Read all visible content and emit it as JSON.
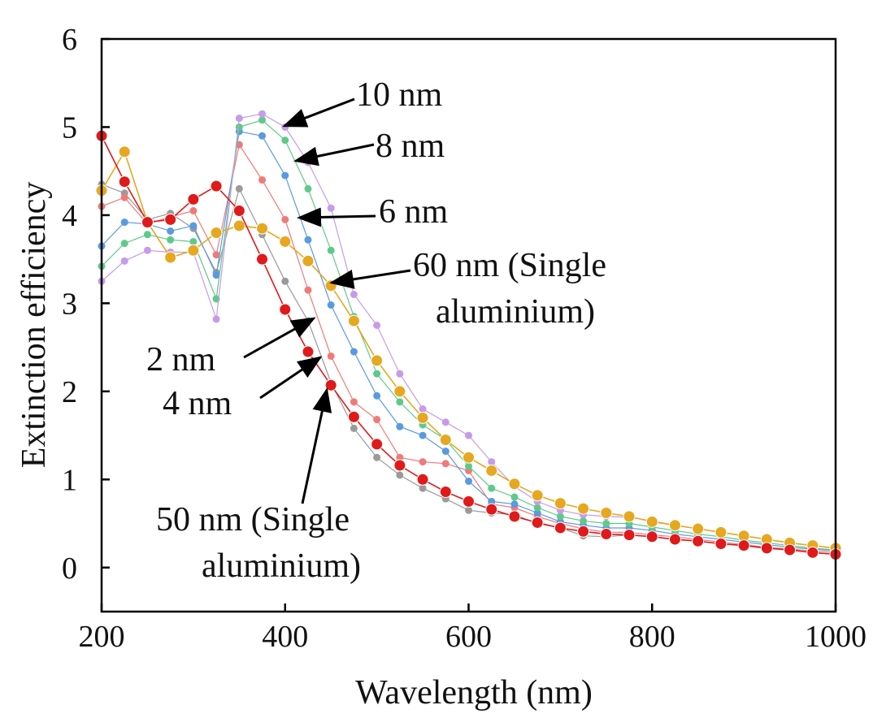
{
  "chart_data": {
    "type": "line",
    "title": "",
    "xlabel": "Wavelength (nm)",
    "ylabel": "Extinction efficiency",
    "xlim": [
      200,
      1000
    ],
    "ylim": [
      -0.5,
      6
    ],
    "xticks": [
      200,
      400,
      600,
      800,
      1000
    ],
    "yticks": [
      0,
      1,
      2,
      3,
      4,
      5,
      6
    ],
    "x": [
      200,
      225,
      250,
      275,
      300,
      325,
      350,
      375,
      400,
      425,
      450,
      475,
      500,
      525,
      550,
      575,
      600,
      625,
      650,
      675,
      700,
      725,
      750,
      775,
      800,
      825,
      850,
      875,
      900,
      925,
      950,
      975,
      1000
    ],
    "series": [
      {
        "name": "2 nm",
        "color": "#9a9a9a",
        "values": [
          4.35,
          4.25,
          3.95,
          4.02,
          3.85,
          3.35,
          4.3,
          3.78,
          3.25,
          2.8,
          2.1,
          1.58,
          1.25,
          1.05,
          0.9,
          0.78,
          0.65,
          0.62,
          0.6,
          0.5,
          0.45,
          0.36,
          0.35,
          0.37,
          0.35,
          0.32,
          0.3,
          0.27,
          0.25,
          0.22,
          0.2,
          0.17,
          0.15
        ]
      },
      {
        "name": "4 nm",
        "color": "#f07a7a",
        "values": [
          4.1,
          4.2,
          3.9,
          3.98,
          4.05,
          3.55,
          4.8,
          4.4,
          3.95,
          3.15,
          2.4,
          1.88,
          1.68,
          1.25,
          1.2,
          1.18,
          1.1,
          0.72,
          0.68,
          0.58,
          0.5,
          0.44,
          0.4,
          0.4,
          0.37,
          0.35,
          0.32,
          0.29,
          0.26,
          0.23,
          0.21,
          0.19,
          0.17
        ]
      },
      {
        "name": "6 nm",
        "color": "#5a9ae0",
        "values": [
          3.65,
          3.92,
          3.9,
          3.82,
          3.88,
          3.32,
          4.95,
          4.9,
          4.45,
          3.72,
          2.98,
          2.45,
          1.95,
          1.6,
          1.5,
          1.32,
          0.98,
          0.75,
          0.72,
          0.62,
          0.52,
          0.48,
          0.45,
          0.45,
          0.42,
          0.38,
          0.35,
          0.32,
          0.29,
          0.26,
          0.23,
          0.21,
          0.19
        ]
      },
      {
        "name": "8 nm",
        "color": "#5fc98a",
        "values": [
          3.42,
          3.68,
          3.78,
          3.72,
          3.7,
          3.05,
          5.0,
          5.08,
          4.85,
          4.3,
          3.6,
          2.85,
          2.2,
          1.88,
          1.62,
          1.45,
          1.15,
          0.9,
          0.8,
          0.68,
          0.58,
          0.53,
          0.5,
          0.5,
          0.46,
          0.42,
          0.38,
          0.35,
          0.31,
          0.28,
          0.25,
          0.22,
          0.2
        ]
      },
      {
        "name": "10 nm",
        "color": "#c79be8",
        "values": [
          3.25,
          3.48,
          3.6,
          3.58,
          3.58,
          2.82,
          5.1,
          5.15,
          5.0,
          4.6,
          4.08,
          3.1,
          2.75,
          2.2,
          1.8,
          1.65,
          1.5,
          1.2,
          0.92,
          0.75,
          0.65,
          0.6,
          0.58,
          0.57,
          0.53,
          0.48,
          0.44,
          0.4,
          0.36,
          0.32,
          0.28,
          0.25,
          0.22
        ]
      },
      {
        "name": "60 nm (Single aluminium)",
        "color": "#e5a820",
        "values": [
          4.28,
          4.72,
          3.92,
          3.52,
          3.6,
          3.8,
          3.88,
          3.85,
          3.7,
          3.48,
          3.2,
          2.8,
          2.35,
          2.0,
          1.7,
          1.45,
          1.25,
          1.1,
          0.95,
          0.82,
          0.73,
          0.67,
          0.62,
          0.58,
          0.52,
          0.48,
          0.44,
          0.4,
          0.36,
          0.32,
          0.28,
          0.25,
          0.22
        ]
      },
      {
        "name": "50 nm (Single aluminium)",
        "color": "#e01a1a",
        "values": [
          4.9,
          4.38,
          3.92,
          3.95,
          4.18,
          4.33,
          4.05,
          3.5,
          2.93,
          2.45,
          2.07,
          1.71,
          1.4,
          1.16,
          1.0,
          0.86,
          0.75,
          0.66,
          0.58,
          0.51,
          0.45,
          0.41,
          0.38,
          0.37,
          0.35,
          0.32,
          0.3,
          0.27,
          0.25,
          0.22,
          0.2,
          0.17,
          0.15
        ]
      }
    ],
    "annotations": [
      {
        "label": "10 nm",
        "line1": "10 nm",
        "line2": ""
      },
      {
        "label": "8 nm",
        "line1": "8 nm",
        "line2": ""
      },
      {
        "label": "6 nm",
        "line1": "6 nm",
        "line2": ""
      },
      {
        "label": "60 nm (Single aluminium)",
        "line1": "60 nm (Single",
        "line2": "aluminium)"
      },
      {
        "label": "2 nm",
        "line1": "2 nm",
        "line2": ""
      },
      {
        "label": "4 nm",
        "line1": "4 nm",
        "line2": ""
      },
      {
        "label": "50 nm (Single aluminium)",
        "line1": "50 nm (Single",
        "line2": "aluminium)"
      }
    ]
  }
}
